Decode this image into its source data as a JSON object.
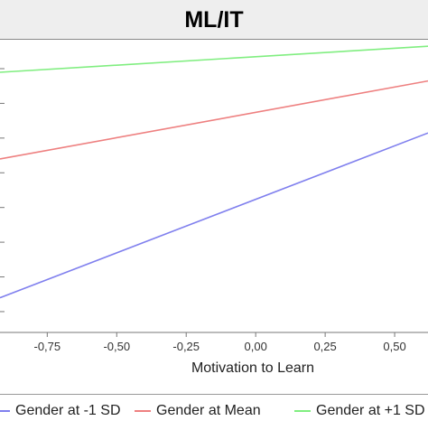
{
  "chart_data": {
    "type": "line",
    "title": "ML/IT",
    "xlabel": "Motivation to Learn",
    "ylabel": "",
    "xlim": [
      -0.92,
      0.62
    ],
    "ylim": [
      0,
      10
    ],
    "x_ticks": [
      -0.75,
      -0.5,
      -0.25,
      0.0,
      0.25,
      0.5
    ],
    "x_tick_labels": [
      "-0,75",
      "-0,50",
      "-0,25",
      "0,00",
      "0,25",
      "0,50"
    ],
    "y_gridline_count": 8,
    "series": [
      {
        "name": "Gender at -1 SD",
        "color": "#8080ee",
        "x": [
          -0.92,
          0.62
        ],
        "y": [
          1.2,
          6.9
        ]
      },
      {
        "name": "Gender at Mean",
        "color": "#ee8080",
        "x": [
          -0.92,
          0.62
        ],
        "y": [
          6.0,
          8.7
        ]
      },
      {
        "name": "Gender at +1 SD",
        "color": "#80ee80",
        "x": [
          -0.92,
          0.62
        ],
        "y": [
          9.0,
          9.9
        ]
      }
    ],
    "legend_position": "bottom",
    "grid": false
  }
}
